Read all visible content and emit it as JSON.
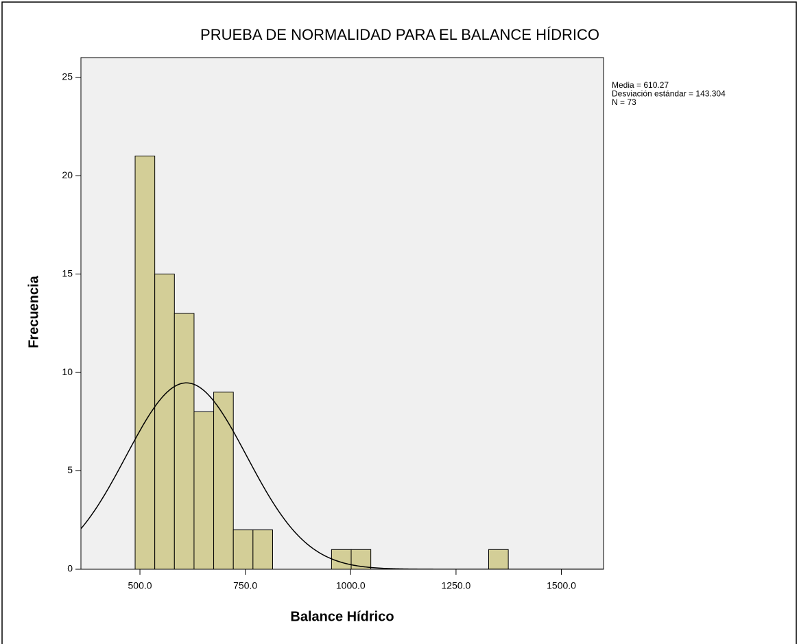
{
  "chart_data": {
    "type": "histogram",
    "title": "PRUEBA DE NORMALIDAD PARA EL BALANCE HÍDRICO",
    "xlabel": "Balance Hídrico",
    "ylabel": "Frecuencia",
    "bins": [
      488.6,
      535.2,
      581.8,
      628.4,
      675.0,
      721.6,
      768.2,
      814.8,
      861.4,
      908.0,
      954.6,
      1001.2,
      1047.8,
      1094.4,
      1141.0,
      1187.6,
      1234.2,
      1280.8,
      1327.4,
      1374.0
    ],
    "values": [
      21,
      15,
      13,
      8,
      9,
      2,
      2,
      0,
      0,
      0,
      1,
      1,
      0,
      0,
      0,
      0,
      0,
      0,
      1
    ],
    "color": "#d3ce97",
    "xlim": [
      360,
      1600
    ],
    "ylim": [
      0,
      26
    ],
    "xticks": [
      {
        "value": 500,
        "label": "500.0"
      },
      {
        "value": 750,
        "label": "750.0"
      },
      {
        "value": 1000,
        "label": "1000.0"
      },
      {
        "value": 1250,
        "label": "1250.0"
      },
      {
        "value": 1500,
        "label": "1500.0"
      }
    ],
    "yticks": [
      0,
      5,
      10,
      15,
      20,
      25
    ],
    "annotations": [
      "Media = 610.27",
      "Desviación estándar = 143.304",
      "N = 73"
    ],
    "normal_curve": {
      "mean": 610.27,
      "sd": 143.304,
      "n": 73
    }
  }
}
